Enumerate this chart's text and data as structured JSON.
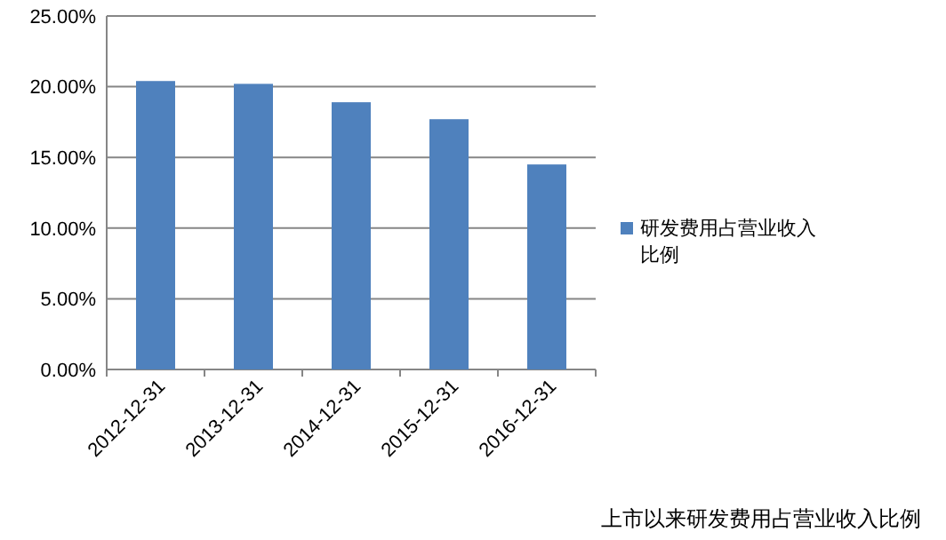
{
  "chart_data": {
    "type": "bar",
    "categories": [
      "2012-12-31",
      "2013-12-31",
      "2014-12-31",
      "2015-12-31",
      "2016-12-31"
    ],
    "series": [
      {
        "name": "研发费用占营业收入比例",
        "color": "#4f81bd",
        "values": [
          20.4,
          20.2,
          18.9,
          17.7,
          14.5
        ]
      }
    ],
    "ylim": [
      0,
      25
    ],
    "yticks": [
      {
        "value": 0,
        "label": "0.00%"
      },
      {
        "value": 5,
        "label": "5.00%"
      },
      {
        "value": 10,
        "label": "10.00%"
      },
      {
        "value": 15,
        "label": "15.00%"
      },
      {
        "value": 20,
        "label": "20.00%"
      },
      {
        "value": 25,
        "label": "25.00%"
      }
    ],
    "grid": "y",
    "legend": "right",
    "annotations": [
      "上市以来研发费用占营业收入比例"
    ]
  }
}
